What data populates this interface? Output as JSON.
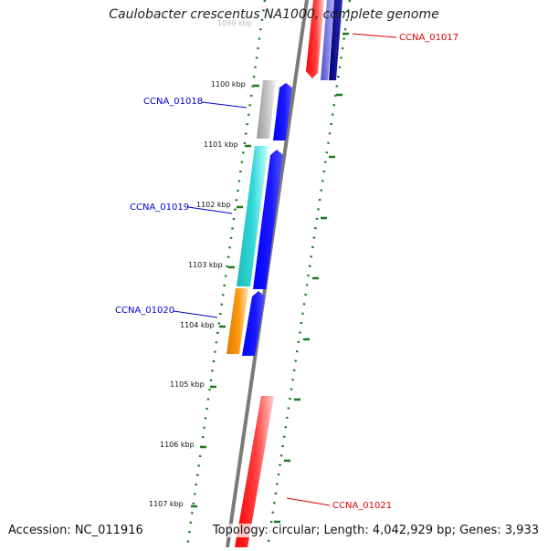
{
  "title": "Caulobacter crescentus NA1000, complete genome",
  "footer": {
    "accession": "Accession: NC_011916",
    "summary": "Topology: circular; Length: 4,042,929 bp; Genes: 3,933"
  },
  "colors": {
    "backbone": "#7a7a7a",
    "tick": "#1a7a1a",
    "label_blue": "#0000cc",
    "label_red": "#dd0000",
    "forward_gene": "#0000ff",
    "reverse_gene": "#ff0000",
    "dark_blue_gene": "#0a0a8a"
  },
  "scale_labels": [
    "1099 kbp",
    "1100 kbp",
    "1101 kbp",
    "1102 kbp",
    "1103 kbp",
    "1104 kbp",
    "1105 kbp",
    "1106 kbp",
    "1107 kbp"
  ],
  "gene_labels": [
    {
      "text": "CCNA_01017",
      "color": "red"
    },
    {
      "text": "CCNA_01018",
      "color": "blue"
    },
    {
      "text": "CCNA_01019",
      "color": "blue"
    },
    {
      "text": "CCNA_01020",
      "color": "blue"
    },
    {
      "text": "CCNA_01021",
      "color": "red"
    }
  ]
}
